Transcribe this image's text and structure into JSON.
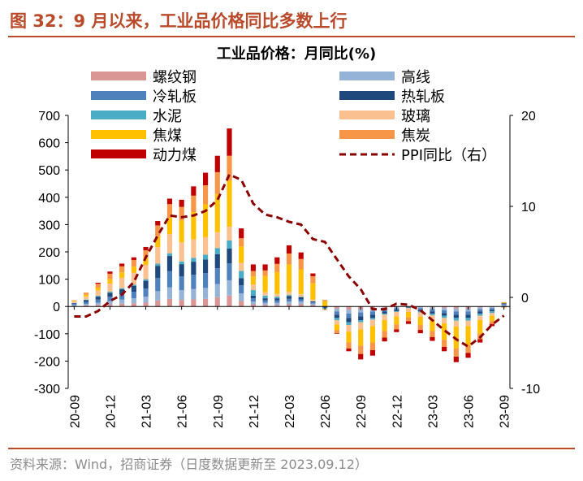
{
  "header": {
    "figure_title": "图 32：9 月以来，工业品价格同比多数上行"
  },
  "source": "资料来源：Wind，招商证券（日度数据更新至 2023.09.12）",
  "chart_data": {
    "type": "bar",
    "stacked": true,
    "title": "工业品价格：月同比(%)",
    "x_tick_labels": [
      "20-09",
      "20-12",
      "21-03",
      "21-06",
      "21-09",
      "21-12",
      "22-03",
      "22-06",
      "22-09",
      "22-12",
      "23-03",
      "23-06",
      "23-09"
    ],
    "categories": [
      "2020-09",
      "2020-10",
      "2020-11",
      "2020-12",
      "2021-01",
      "2021-02",
      "2021-03",
      "2021-04",
      "2021-05",
      "2021-06",
      "2021-07",
      "2021-08",
      "2021-09",
      "2021-10",
      "2021-11",
      "2021-12",
      "2022-01",
      "2022-02",
      "2022-03",
      "2022-04",
      "2022-05",
      "2022-06",
      "2022-07",
      "2022-08",
      "2022-09",
      "2022-10",
      "2022-11",
      "2022-12",
      "2023-01",
      "2023-02",
      "2023-03",
      "2023-04",
      "2023-05",
      "2023-06",
      "2023-07",
      "2023-08",
      "2023-09"
    ],
    "ylim": [
      -300,
      700
    ],
    "y_ticks": [
      -300,
      -200,
      -100,
      0,
      100,
      200,
      300,
      400,
      500,
      600,
      700
    ],
    "y2lim": [
      -10,
      20
    ],
    "y2_ticks": [
      -10,
      0,
      10,
      20
    ],
    "legend_position": "top",
    "series": [
      {
        "name": "螺纹钢",
        "color": "#d99694",
        "values": [
          2,
          4,
          6,
          8,
          10,
          12,
          14,
          22,
          28,
          24,
          26,
          28,
          34,
          40,
          20,
          8,
          6,
          6,
          8,
          8,
          5,
          0,
          -8,
          -12,
          -10,
          -8,
          -4,
          -2,
          0,
          -2,
          -4,
          -6,
          -8,
          -8,
          -4,
          -2,
          2
        ]
      },
      {
        "name": "高线",
        "color": "#95b3d7",
        "values": [
          3,
          5,
          8,
          12,
          15,
          18,
          22,
          34,
          42,
          36,
          38,
          40,
          48,
          56,
          28,
          10,
          8,
          8,
          10,
          10,
          6,
          0,
          -10,
          -14,
          -12,
          -10,
          -6,
          -4,
          0,
          -4,
          -6,
          -8,
          -10,
          -10,
          -6,
          -4,
          3
        ]
      },
      {
        "name": "冷轧板",
        "color": "#4f81bd",
        "values": [
          4,
          8,
          12,
          16,
          20,
          24,
          30,
          48,
          60,
          50,
          52,
          54,
          58,
          62,
          30,
          12,
          8,
          8,
          10,
          8,
          4,
          -2,
          -12,
          -16,
          -14,
          -12,
          -8,
          -6,
          -2,
          -6,
          -8,
          -10,
          -12,
          -12,
          -8,
          -6,
          4
        ]
      },
      {
        "name": "热轧板",
        "color": "#1f497d",
        "values": [
          3,
          6,
          10,
          14,
          18,
          22,
          28,
          45,
          55,
          45,
          48,
          50,
          52,
          54,
          26,
          10,
          8,
          8,
          10,
          8,
          4,
          -2,
          -12,
          -16,
          -14,
          -12,
          -8,
          -6,
          -2,
          -6,
          -8,
          -10,
          -12,
          -12,
          -8,
          -6,
          3
        ]
      },
      {
        "name": "水泥",
        "color": "#4bacc6",
        "values": [
          1,
          2,
          3,
          4,
          4,
          4,
          6,
          8,
          10,
          10,
          14,
          18,
          22,
          30,
          26,
          20,
          10,
          6,
          4,
          2,
          0,
          -4,
          -8,
          -10,
          -8,
          -6,
          -4,
          -2,
          -2,
          -4,
          -6,
          -8,
          -10,
          -10,
          -8,
          -6,
          -2
        ]
      },
      {
        "name": "玻璃",
        "color": "#fac090",
        "values": [
          6,
          12,
          20,
          30,
          38,
          44,
          52,
          60,
          70,
          70,
          68,
          64,
          58,
          50,
          30,
          20,
          12,
          10,
          12,
          10,
          6,
          -6,
          -16,
          -24,
          -26,
          -24,
          -20,
          -16,
          -14,
          -16,
          -18,
          -20,
          -22,
          -20,
          -16,
          -10,
          -4
        ]
      },
      {
        "name": "焦煤",
        "color": "#ffc000",
        "values": [
          2,
          6,
          10,
          16,
          20,
          22,
          28,
          40,
          60,
          80,
          100,
          120,
          140,
          170,
          60,
          30,
          60,
          80,
          100,
          90,
          60,
          20,
          -20,
          -40,
          -60,
          -60,
          -40,
          -30,
          -20,
          -30,
          -40,
          -60,
          -80,
          -70,
          -50,
          -20,
          2
        ]
      },
      {
        "name": "焦炭",
        "color": "#f79646",
        "values": [
          2,
          8,
          14,
          20,
          22,
          24,
          26,
          40,
          50,
          50,
          60,
          70,
          80,
          90,
          30,
          20,
          20,
          30,
          40,
          38,
          26,
          4,
          -12,
          -22,
          -30,
          -28,
          -24,
          -18,
          -14,
          -18,
          -22,
          -26,
          -30,
          -28,
          -20,
          -10,
          2
        ]
      },
      {
        "name": "动力煤",
        "color": "#c00000",
        "values": [
          0,
          0,
          4,
          8,
          10,
          10,
          12,
          16,
          20,
          26,
          34,
          46,
          60,
          100,
          36,
          24,
          22,
          24,
          30,
          24,
          10,
          0,
          -2,
          -10,
          -20,
          -20,
          -14,
          -10,
          -10,
          -12,
          -14,
          -16,
          -20,
          -18,
          -12,
          -8,
          0
        ]
      }
    ],
    "line_series": {
      "name": "PPI同比（右）",
      "color": "#8b0000",
      "axis": "right",
      "values": [
        -2.1,
        -2.1,
        -1.5,
        -0.4,
        0.3,
        1.7,
        4.4,
        6.8,
        9.0,
        8.8,
        9.0,
        9.5,
        10.7,
        13.5,
        12.9,
        10.3,
        9.1,
        8.8,
        8.3,
        8.0,
        6.4,
        6.1,
        4.2,
        2.3,
        0.9,
        -1.3,
        -1.3,
        -0.7,
        -0.8,
        -1.4,
        -2.5,
        -3.6,
        -4.6,
        -5.4,
        -4.4,
        -3.0,
        -2.0
      ]
    }
  }
}
